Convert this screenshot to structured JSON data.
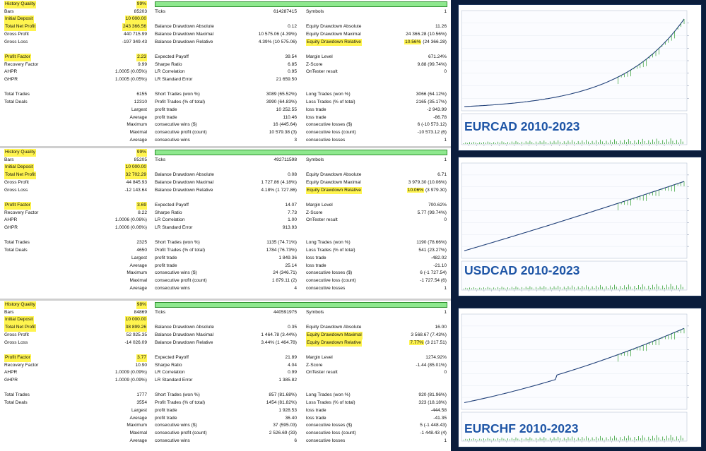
{
  "reports": [
    {
      "name": "EURCAD",
      "rows": [
        {
          "k1": "History Quality",
          "v1": "99%",
          "qualityBar": true,
          "h1": true,
          "hv1": true
        },
        {
          "k1": "Bars",
          "v1": "85203",
          "k2": "Ticks",
          "v2": "614287415",
          "k3": "Symbols",
          "v3": "1"
        },
        {
          "k1": "Initial Deposit",
          "v1": "10 000.00",
          "h1": true,
          "hv1": true
        },
        {
          "k1": "Total Net Profit",
          "v1": "243 366.56",
          "k2": "Balance Drawdown Absolute",
          "v2": "0.12",
          "k3": "Equity Drawdown Absolute",
          "v3": "11.26",
          "h1": true,
          "hv1": true
        },
        {
          "k1": "Gross Profit",
          "v1": "440 715.99",
          "k2": "Balance Drawdown Maximal",
          "v2": "10 575.06 (4.39%)",
          "k3": "Equity Drawdown Maximal",
          "v3": "24 366.28 (10.56%)"
        },
        {
          "k1": "Gross Loss",
          "v1": "-197 349.43",
          "k2": "Balance Drawdown Relative",
          "v2": "4.39% (10 575.06)",
          "k3": "Equity Drawdown Relative",
          "v3a": "10.56%",
          "v3b": " (24 366.28)",
          "h3": true
        },
        {},
        {
          "k1": "Profit Factor",
          "v1": "2.23",
          "k2": "Expected Payoff",
          "v2": "39.54",
          "k3": "Margin Level",
          "v3": "671.24%",
          "h1": true,
          "hv1": true
        },
        {
          "k1": "Recovery Factor",
          "v1": "9.99",
          "k2": "Sharpe Ratio",
          "v2": "6.85",
          "k3": "Z-Score",
          "v3": "9.88 (99.74%)"
        },
        {
          "k1": "AHPR",
          "v1": "1.0005 (0.05%)",
          "k2": "LR Correlation",
          "v2": "0.95",
          "k3": "OnTester result",
          "v3": "0"
        },
        {
          "k1": "GHPR",
          "v1": "1.0005 (0.05%)",
          "k2": "LR Standard Error",
          "v2": "21 659.50"
        },
        {},
        {
          "k1": "Total Trades",
          "v1": "6155",
          "k2": "Short Trades (won %)",
          "v2": "3089 (65.52%)",
          "k3": "Long Trades (won %)",
          "v3": "3066 (64.12%)"
        },
        {
          "k1": "Total Deals",
          "v1": "12310",
          "k2": "Profit Trades (% of total)",
          "v2": "3990 (64.83%)",
          "k3": "Loss Trades (% of total)",
          "v3": "2165 (35.17%)"
        },
        {
          "v1": "Largest",
          "k2": "profit trade",
          "v2": "10 252.55",
          "k3": "loss trade",
          "v3": "-2 943.99"
        },
        {
          "v1": "Average",
          "k2": "profit trade",
          "v2": "110.46",
          "k3": "loss trade",
          "v3": "-86.78"
        },
        {
          "v1": "Maximum",
          "k2": "consecutive wins ($)",
          "v2": "16 (445.64)",
          "k3": "consecutive losses ($)",
          "v3": "6 (-10 573.12)"
        },
        {
          "v1": "Maximal",
          "k2": "consecutive profit (count)",
          "v2": "10 579.38 (3)",
          "k3": "consecutive loss (count)",
          "v3": "-10 573.12 (6)"
        },
        {
          "v1": "Average",
          "k2": "consecutive wins",
          "v2": "3",
          "k3": "consecutive losses",
          "v3": "1"
        }
      ]
    },
    {
      "name": "USDCAD",
      "rows": [
        {
          "k1": "History Quality",
          "v1": "99%",
          "qualityBar": true,
          "h1": true,
          "hv1": true
        },
        {
          "k1": "Bars",
          "v1": "85205",
          "k2": "Ticks",
          "v2": "492711598",
          "k3": "Symbols",
          "v3": "1"
        },
        {
          "k1": "Initial Deposit",
          "v1": "10 000.00",
          "h1": true,
          "hv1": true
        },
        {
          "k1": "Total Net Profit",
          "v1": "32 702.29",
          "k2": "Balance Drawdown Absolute",
          "v2": "0.08",
          "k3": "Equity Drawdown Absolute",
          "v3": "6.71",
          "h1": true,
          "hv1": true
        },
        {
          "k1": "Gross Profit",
          "v1": "44 845.93",
          "k2": "Balance Drawdown Maximal",
          "v2": "1 727.86 (4.18%)",
          "k3": "Equity Drawdown Maximal",
          "v3": "3 979.30 (10.06%)"
        },
        {
          "k1": "Gross Loss",
          "v1": "-12 143.64",
          "k2": "Balance Drawdown Relative",
          "v2": "4.18% (1 727.86)",
          "k3": "Equity Drawdown Relative",
          "v3a": "10.06%",
          "v3b": " (3 979.30)",
          "h3": true
        },
        {},
        {
          "k1": "Profit Factor",
          "v1": "3.69",
          "k2": "Expected Payoff",
          "v2": "14.07",
          "k3": "Margin Level",
          "v3": "700.62%",
          "h1": true,
          "hv1": true
        },
        {
          "k1": "Recovery Factor",
          "v1": "8.22",
          "k2": "Sharpe Ratio",
          "v2": "7.73",
          "k3": "Z-Score",
          "v3": "5.77 (99.74%)"
        },
        {
          "k1": "AHPR",
          "v1": "1.0006 (0.06%)",
          "k2": "LR Correlation",
          "v2": "1.00",
          "k3": "OnTester result",
          "v3": "0"
        },
        {
          "k1": "GHPR",
          "v1": "1.0006 (0.06%)",
          "k2": "LR Standard Error",
          "v2": "913.93"
        },
        {},
        {
          "k1": "Total Trades",
          "v1": "2325",
          "k2": "Short Trades (won %)",
          "v2": "1135 (74.71%)",
          "k3": "Long Trades (won %)",
          "v3": "1190 (78.66%)"
        },
        {
          "k1": "Total Deals",
          "v1": "4650",
          "k2": "Profit Trades (% of total)",
          "v2": "1784 (76.73%)",
          "k3": "Loss Trades (% of total)",
          "v3": "541 (23.27%)"
        },
        {
          "v1": "Largest",
          "k2": "profit trade",
          "v2": "1 849.36",
          "k3": "loss trade",
          "v3": "-482.02"
        },
        {
          "v1": "Average",
          "k2": "profit trade",
          "v2": "25.14",
          "k3": "loss trade",
          "v3": "-21.10"
        },
        {
          "v1": "Maximum",
          "k2": "consecutive wins ($)",
          "v2": "24 (346.71)",
          "k3": "consecutive losses ($)",
          "v3": "6 (-1 727.54)"
        },
        {
          "v1": "Maximal",
          "k2": "consecutive profit (count)",
          "v2": "1 879.11 (2)",
          "k3": "consecutive loss (count)",
          "v3": "-1 727.54 (6)"
        },
        {
          "v1": "Average",
          "k2": "consecutive wins",
          "v2": "4",
          "k3": "consecutive losses",
          "v3": "1"
        }
      ]
    },
    {
      "name": "EURCHF",
      "rows": [
        {
          "k1": "History Quality",
          "v1": "98%",
          "qualityBar": true,
          "h1": true,
          "hv1": true
        },
        {
          "k1": "Bars",
          "v1": "84869",
          "k2": "Ticks",
          "v2": "440591975",
          "k3": "Symbols",
          "v3": "1"
        },
        {
          "k1": "Initial Deposit",
          "v1": "10 000.00",
          "h1": true,
          "hv1": true
        },
        {
          "k1": "Total Net Profit",
          "v1": "38 899.26",
          "k2": "Balance Drawdown Absolute",
          "v2": "0.35",
          "k3": "Equity Drawdown Absolute",
          "v3": "16.00",
          "h1": true,
          "hv1": true
        },
        {
          "k1": "Gross Profit",
          "v1": "52 925.35",
          "k2": "Balance Drawdown Maximal",
          "v2": "1 464.78 (3.44%)",
          "k3": "Equity Drawdown Maximal",
          "v3": "3 568.67 (7.43%)",
          "h3": true
        },
        {
          "k1": "Gross Loss",
          "v1": "-14 026.09",
          "k2": "Balance Drawdown Relative",
          "v2": "3.44% (1 464.78)",
          "k3": "Equity Drawdown Relative",
          "v3a": "7.77%",
          "v3b": " (3 217.51)",
          "h3": true
        },
        {},
        {
          "k1": "Profit Factor",
          "v1": "3.77",
          "k2": "Expected Payoff",
          "v2": "21.89",
          "k3": "Margin Level",
          "v3": "1274.92%",
          "h1": true,
          "hv1": true
        },
        {
          "k1": "Recovery Factor",
          "v1": "10.90",
          "k2": "Sharpe Ratio",
          "v2": "4.04",
          "k3": "Z-Score",
          "v3": "-1.44 (85.01%)"
        },
        {
          "k1": "AHPR",
          "v1": "1.0009 (0.09%)",
          "k2": "LR Correlation",
          "v2": "0.99",
          "k3": "OnTester result",
          "v3": "0"
        },
        {
          "k1": "GHPR",
          "v1": "1.0009 (0.09%)",
          "k2": "LR Standard Error",
          "v2": "1 385.82"
        },
        {},
        {
          "k1": "Total Trades",
          "v1": "1777",
          "k2": "Short Trades (won %)",
          "v2": "857 (81.68%)",
          "k3": "Long Trades (won %)",
          "v3": "920 (81.96%)"
        },
        {
          "k1": "Total Deals",
          "v1": "3554",
          "k2": "Profit Trades (% of total)",
          "v2": "1454 (81.82%)",
          "k3": "Loss Trades (% of total)",
          "v3": "323 (18.18%)"
        },
        {
          "v1": "Largest",
          "k2": "profit trade",
          "v2": "1 928.53",
          "k3": "loss trade",
          "v3": "-444.58"
        },
        {
          "v1": "Average",
          "k2": "profit trade",
          "v2": "36.40",
          "k3": "loss trade",
          "v3": "-41.35"
        },
        {
          "v1": "Maximum",
          "k2": "consecutive wins ($)",
          "v2": "37 (595.03)",
          "k3": "consecutive losses ($)",
          "v3": "5 (-1 448.43)"
        },
        {
          "v1": "Maximal",
          "k2": "consecutive profit (count)",
          "v2": "2 526.69 (33)",
          "k3": "consecutive loss (count)",
          "v3": "-1 448.43 (4)"
        },
        {
          "v1": "Average",
          "k2": "consecutive wins",
          "v2": "6",
          "k3": "consecutive losses",
          "v3": "1"
        }
      ]
    }
  ],
  "panels": [
    {
      "label": "EURCAD 2010-2023",
      "shape": "exp",
      "jump": false
    },
    {
      "label": "USDCAD 2010-2023",
      "shape": "linear",
      "jump": false
    },
    {
      "label": "EURCHF 2010-2023",
      "shape": "mix",
      "jump": true
    }
  ],
  "colors": {
    "highlight": "#fff44f",
    "qualityBar": "#8ee88e",
    "balanceLine": "#1f3f78",
    "equitySpike": "#2e9e2e",
    "background": "#0b1d3c",
    "labelText": "#1e55a6"
  }
}
